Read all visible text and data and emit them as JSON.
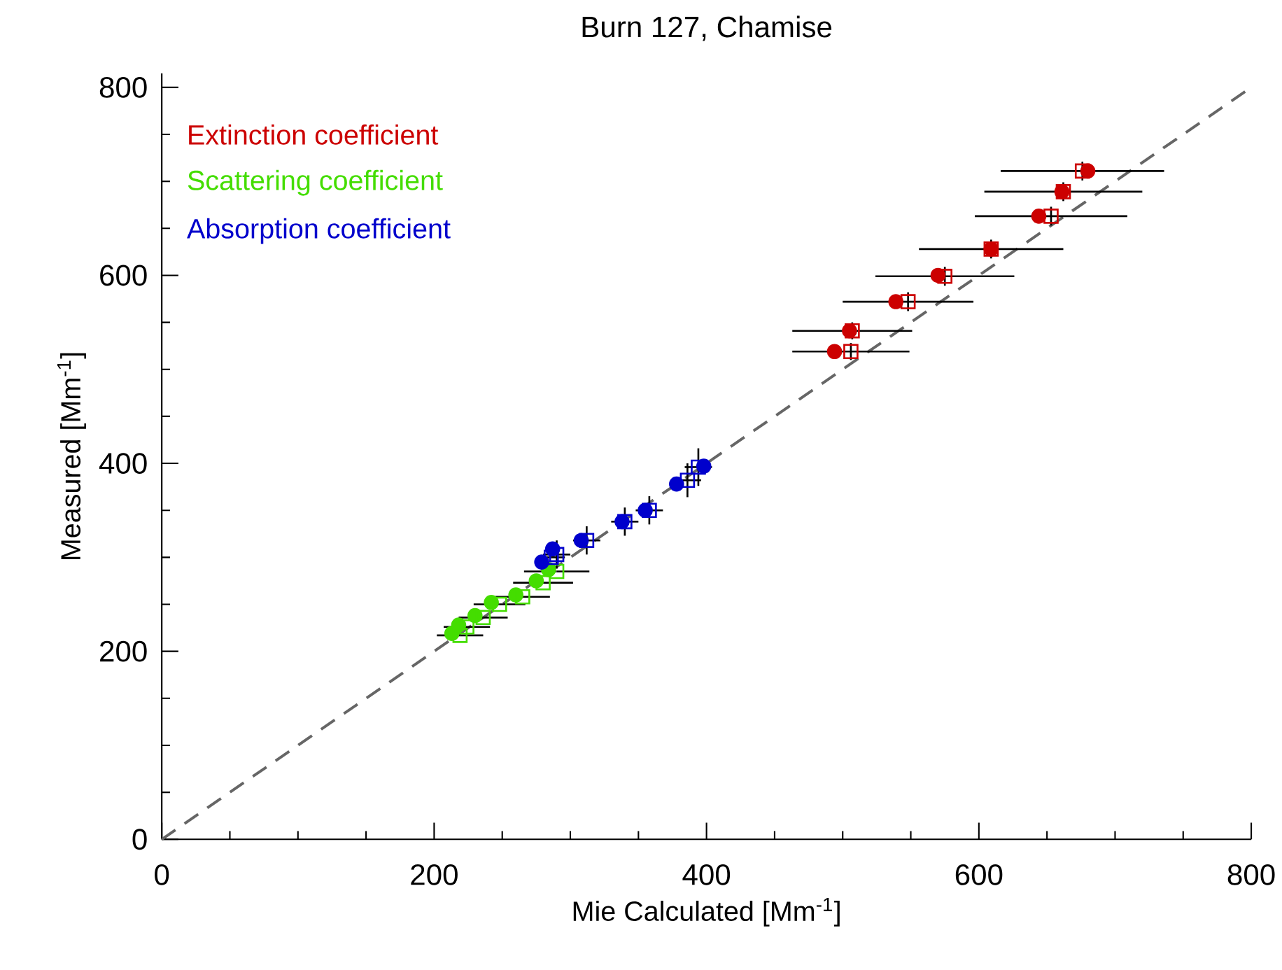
{
  "chart_data": {
    "type": "scatter",
    "title": "Burn 127, Chamise",
    "xlabel": "Mie Calculated [Mm$^{-1}$]",
    "ylabel": "Measured [Mm$^{-1}$]",
    "xlim": [
      0,
      800
    ],
    "ylim": [
      0,
      815
    ],
    "xticks": [
      0,
      {
        "value": 50,
        "label": null
      },
      {
        "value": 100,
        "label": null
      },
      {
        "value": 150,
        "label": null
      },
      200,
      {
        "value": 250,
        "label": null
      },
      {
        "value": 300,
        "label": null
      },
      {
        "value": 350,
        "label": null
      },
      400,
      {
        "value": 450,
        "label": null
      },
      {
        "value": 500,
        "label": null
      },
      {
        "value": 550,
        "label": null
      },
      600,
      {
        "value": 650,
        "label": null
      },
      {
        "value": 700,
        "label": null
      },
      {
        "value": 750,
        "label": null
      },
      800
    ],
    "yticks": [
      0,
      {
        "value": 50,
        "label": null
      },
      {
        "value": 100,
        "label": null
      },
      {
        "value": 150,
        "label": null
      },
      200,
      {
        "value": 250,
        "label": null
      },
      {
        "value": 300,
        "label": null
      },
      {
        "value": 350,
        "label": null
      },
      400,
      {
        "value": 450,
        "label": null
      },
      {
        "value": 500,
        "label": null
      },
      {
        "value": 550,
        "label": null
      },
      600,
      {
        "value": 650,
        "label": null
      },
      {
        "value": 700,
        "label": null
      },
      {
        "value": 750,
        "label": null
      },
      800
    ],
    "grid": false,
    "legend": "top left",
    "series": [
      {
        "type": "line",
        "color": "#666666",
        "line_style": "dashed",
        "marker": "none",
        "x": [
          0,
          800
        ],
        "values": [
          0,
          800
        ]
      },
      {
        "name": "Extinction coefficient",
        "color": "#cc0000",
        "marker": "circle",
        "x": [
          680,
          661,
          644,
          609,
          570,
          539,
          505,
          494
        ],
        "values": [
          711,
          689,
          663,
          628,
          600,
          572,
          541,
          519
        ]
      },
      {
        "color": "#cc0000",
        "marker": "square",
        "x": [
          676,
          662,
          653,
          609,
          575,
          548,
          507,
          506
        ],
        "values": [
          711,
          689,
          663,
          628,
          599,
          572,
          541,
          519
        ],
        "xerrors": [
          60,
          58,
          56,
          53,
          51,
          48,
          44,
          43
        ],
        "errors": [
          10,
          10,
          10,
          10,
          10,
          10,
          9,
          9
        ]
      },
      {
        "name": "Scattering coefficient",
        "color": "#44dd00",
        "marker": "circle",
        "x": [
          213,
          218,
          230,
          242,
          260,
          275,
          284
        ],
        "values": [
          219,
          228,
          238,
          252,
          260,
          275,
          287
        ]
      },
      {
        "color": "#44dd00",
        "marker": "square",
        "x": [
          219,
          224,
          236,
          248,
          265,
          280,
          290
        ],
        "values": [
          217,
          226,
          236,
          250,
          258,
          273,
          285
        ],
        "xerrors": [
          17,
          17,
          18,
          19,
          20,
          22,
          24
        ]
      },
      {
        "name": "Absorption coefficient",
        "color": "#0000cc",
        "marker": "circle",
        "x": [
          279,
          287,
          308,
          338,
          355,
          378,
          398
        ],
        "values": [
          295,
          309,
          318,
          338,
          350,
          378,
          397
        ]
      },
      {
        "color": "#0000cc",
        "marker": "square",
        "x": [
          286,
          290,
          312,
          340,
          358,
          386,
          394
        ],
        "values": [
          300,
          303,
          318,
          338,
          350,
          382,
          396
        ],
        "xerrors": [
          10,
          10,
          10,
          10,
          10,
          10,
          10
        ],
        "errors": [
          null,
          15,
          15,
          15,
          15,
          18,
          20
        ]
      }
    ]
  }
}
